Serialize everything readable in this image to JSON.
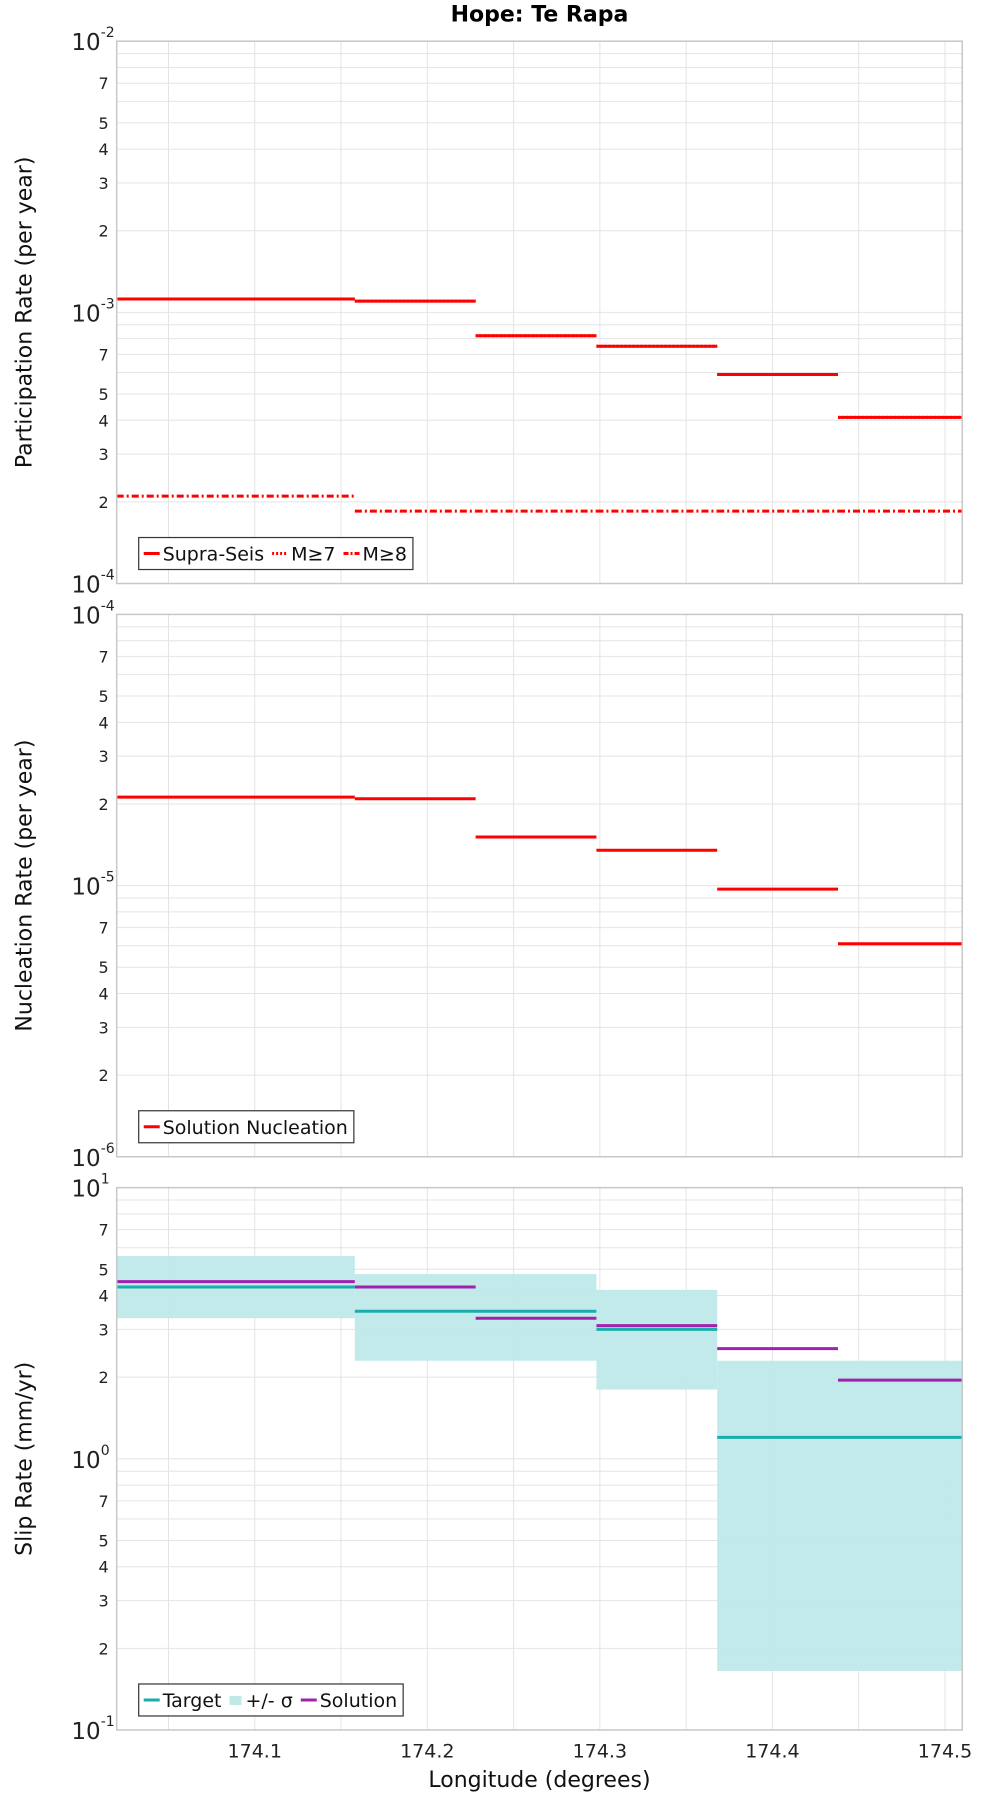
{
  "title": "Hope: Te Rapa",
  "xlabel": "Longitude (degrees)",
  "chart_data": [
    {
      "type": "line",
      "ylabel": "Participation Rate (per year)",
      "yscale": "log",
      "ylim": [
        0.0001,
        0.01
      ],
      "xlim": [
        174.02,
        174.51
      ],
      "grid": true,
      "legend_position": "bottom-left",
      "series": [
        {
          "name": "Supra-Seis",
          "style": "solid",
          "color": "#ff0000",
          "segments": [
            [
              174.02,
              174.158,
              0.00112
            ],
            [
              174.158,
              174.228,
              0.0011
            ],
            [
              174.228,
              174.298,
              0.00082
            ],
            [
              174.298,
              174.368,
              0.00075
            ],
            [
              174.368,
              174.438,
              0.00059
            ],
            [
              174.438,
              174.51,
              0.00041
            ]
          ]
        },
        {
          "name": "M≥7",
          "style": "dotted",
          "color": "#ff0000",
          "segments": [
            [
              174.02,
              174.158,
              0.00112
            ],
            [
              174.158,
              174.228,
              0.0011
            ],
            [
              174.228,
              174.298,
              0.00082
            ],
            [
              174.298,
              174.368,
              0.00075
            ],
            [
              174.368,
              174.438,
              0.00059
            ],
            [
              174.438,
              174.51,
              0.00041
            ]
          ]
        },
        {
          "name": "M≥8",
          "style": "dashdot",
          "color": "#ff0000",
          "segments": [
            [
              174.02,
              174.158,
              0.00021
            ],
            [
              174.158,
              174.228,
              0.000185
            ],
            [
              174.228,
              174.298,
              0.000185
            ],
            [
              174.298,
              174.368,
              0.000185
            ],
            [
              174.368,
              174.438,
              0.000185
            ],
            [
              174.438,
              174.51,
              0.000185
            ]
          ]
        }
      ]
    },
    {
      "type": "line",
      "ylabel": "Nucleation Rate (per year)",
      "yscale": "log",
      "ylim": [
        1e-06,
        0.0001
      ],
      "xlim": [
        174.02,
        174.51
      ],
      "grid": true,
      "legend_position": "bottom-left",
      "series": [
        {
          "name": "Solution Nucleation",
          "style": "solid",
          "color": "#ff0000",
          "segments": [
            [
              174.02,
              174.158,
              2.12e-05
            ],
            [
              174.158,
              174.228,
              2.09e-05
            ],
            [
              174.228,
              174.298,
              1.51e-05
            ],
            [
              174.298,
              174.368,
              1.35e-05
            ],
            [
              174.368,
              174.438,
              9.7e-06
            ],
            [
              174.438,
              174.51,
              6.1e-06
            ]
          ]
        }
      ]
    },
    {
      "type": "line",
      "ylabel": "Slip Rate (mm/yr)",
      "yscale": "log",
      "ylim": [
        0.1,
        10
      ],
      "xlim": [
        174.02,
        174.51
      ],
      "grid": true,
      "legend_position": "bottom-left",
      "series": [
        {
          "name": "Target",
          "style": "solid",
          "color": "#1aadad",
          "segments": [
            [
              174.02,
              174.158,
              4.3
            ],
            [
              174.158,
              174.298,
              3.5
            ],
            [
              174.298,
              174.368,
              3.0
            ],
            [
              174.368,
              174.51,
              1.2
            ]
          ]
        },
        {
          "name": "+/- σ",
          "style": "band",
          "color": "#bfe9e9",
          "bands": [
            [
              174.02,
              174.158,
              3.3,
              5.6
            ],
            [
              174.158,
              174.298,
              2.3,
              4.8
            ],
            [
              174.298,
              174.368,
              1.8,
              4.2
            ],
            [
              174.368,
              174.51,
              0.165,
              2.3
            ]
          ]
        },
        {
          "name": "Solution",
          "style": "solid",
          "color": "#a020b0",
          "segments": [
            [
              174.02,
              174.158,
              4.5
            ],
            [
              174.158,
              174.228,
              4.3
            ],
            [
              174.228,
              174.298,
              3.3
            ],
            [
              174.298,
              174.368,
              3.1
            ],
            [
              174.368,
              174.438,
              2.55
            ],
            [
              174.438,
              174.51,
              1.95
            ]
          ]
        }
      ]
    }
  ],
  "xticks": [
    "174.1",
    "174.2",
    "174.3",
    "174.4",
    "174.5"
  ],
  "xtick_values": [
    174.1,
    174.2,
    174.3,
    174.4,
    174.5
  ],
  "ytick_minor_labels": [
    "2",
    "3",
    "4",
    "5",
    "7"
  ],
  "ytick_major_labels": [
    [
      {
        "base": "10",
        "exp": "-4"
      },
      {
        "base": "10",
        "exp": "-3"
      },
      {
        "base": "10",
        "exp": "-2"
      }
    ],
    [
      {
        "base": "10",
        "exp": "-6"
      },
      {
        "base": "10",
        "exp": "-5"
      },
      {
        "base": "10",
        "exp": "-4"
      }
    ],
    [
      {
        "base": "10",
        "exp": "-1"
      },
      {
        "base": "10",
        "exp": "0"
      },
      {
        "base": "10",
        "exp": "1"
      }
    ]
  ],
  "colors": {
    "red": "#ff0000",
    "target": "#1aadad",
    "band": "#bfe9e9",
    "solution": "#a020b0",
    "grid": "#e4e4e4",
    "frame": "#c8c8c8"
  }
}
